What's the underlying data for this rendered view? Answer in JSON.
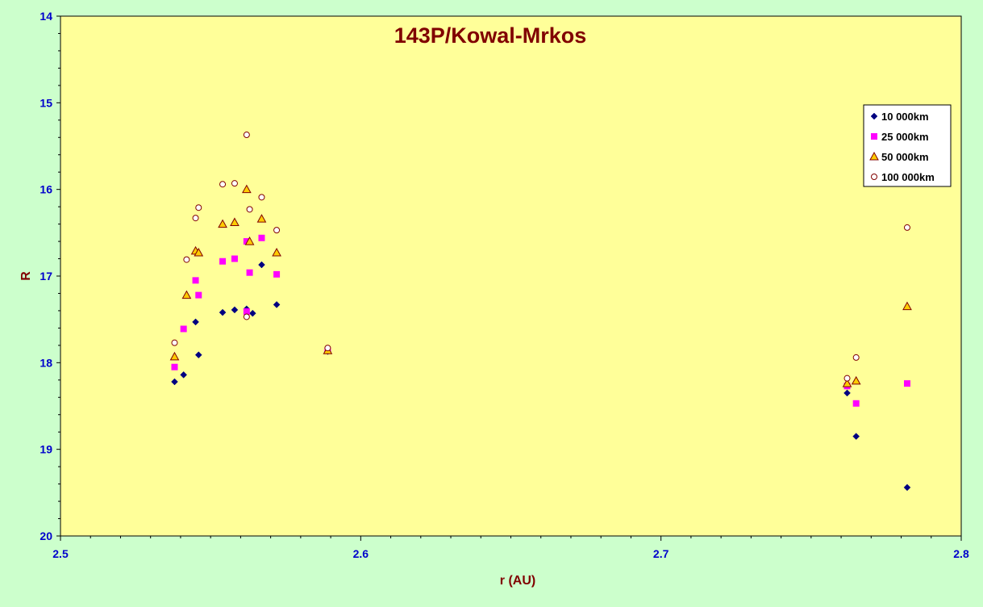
{
  "colors": {
    "page_background": "#ccffcc",
    "plot_background": "#ffff99",
    "title": "#800000",
    "tick_labels": "#0000cc",
    "series_10000": "#000080",
    "series_25000": "#ff00ff",
    "series_50000_fill": "#ffcc00",
    "series_50000_stroke": "#800000",
    "series_100000_fill": "#ffffff",
    "series_100000_stroke": "#800000"
  },
  "chart_data": {
    "type": "scatter",
    "title": "143P/Kowal-Mrkos",
    "xlabel": "r (AU)",
    "ylabel": "R",
    "xlim": [
      2.5,
      2.8
    ],
    "ylim": [
      14,
      20
    ],
    "y_reversed": true,
    "x_ticks": [
      "2.5",
      "2.6",
      "2.7",
      "2.8"
    ],
    "y_ticks": [
      "14",
      "15",
      "16",
      "17",
      "18",
      "19",
      "20"
    ],
    "grid": false,
    "legend_position": "top-right",
    "series": [
      {
        "name": "10 000km",
        "marker": "diamond",
        "points": [
          [
            2.538,
            18.22
          ],
          [
            2.541,
            18.14
          ],
          [
            2.545,
            17.53
          ],
          [
            2.546,
            17.91
          ],
          [
            2.554,
            17.42
          ],
          [
            2.558,
            17.39
          ],
          [
            2.562,
            17.38
          ],
          [
            2.564,
            17.43
          ],
          [
            2.567,
            16.87
          ],
          [
            2.572,
            17.33
          ],
          [
            2.589,
            17.87
          ],
          [
            2.762,
            18.35
          ],
          [
            2.765,
            18.85
          ],
          [
            2.782,
            19.44
          ]
        ]
      },
      {
        "name": "25 000km",
        "marker": "square",
        "points": [
          [
            2.538,
            18.05
          ],
          [
            2.541,
            17.61
          ],
          [
            2.545,
            17.05
          ],
          [
            2.546,
            17.22
          ],
          [
            2.554,
            16.83
          ],
          [
            2.558,
            16.8
          ],
          [
            2.562,
            16.6
          ],
          [
            2.562,
            17.41
          ],
          [
            2.563,
            16.96
          ],
          [
            2.567,
            16.56
          ],
          [
            2.572,
            16.98
          ],
          [
            2.589,
            17.86
          ],
          [
            2.762,
            18.27
          ],
          [
            2.765,
            18.47
          ],
          [
            2.782,
            18.24
          ]
        ]
      },
      {
        "name": "50 000km",
        "marker": "triangle",
        "points": [
          [
            2.538,
            17.93
          ],
          [
            2.542,
            17.22
          ],
          [
            2.545,
            16.71
          ],
          [
            2.546,
            16.73
          ],
          [
            2.554,
            16.4
          ],
          [
            2.558,
            16.38
          ],
          [
            2.562,
            16.0
          ],
          [
            2.563,
            16.6
          ],
          [
            2.567,
            16.34
          ],
          [
            2.572,
            16.73
          ],
          [
            2.589,
            17.86
          ],
          [
            2.762,
            18.24
          ],
          [
            2.765,
            18.21
          ],
          [
            2.782,
            17.35
          ]
        ]
      },
      {
        "name": "100 000km",
        "marker": "circle",
        "points": [
          [
            2.538,
            17.77
          ],
          [
            2.542,
            16.81
          ],
          [
            2.545,
            16.33
          ],
          [
            2.546,
            16.21
          ],
          [
            2.554,
            15.94
          ],
          [
            2.558,
            15.93
          ],
          [
            2.562,
            15.37
          ],
          [
            2.562,
            17.47
          ],
          [
            2.563,
            16.23
          ],
          [
            2.567,
            16.09
          ],
          [
            2.572,
            16.47
          ],
          [
            2.589,
            17.83
          ],
          [
            2.762,
            18.18
          ],
          [
            2.765,
            17.94
          ],
          [
            2.782,
            16.44
          ]
        ]
      }
    ]
  }
}
